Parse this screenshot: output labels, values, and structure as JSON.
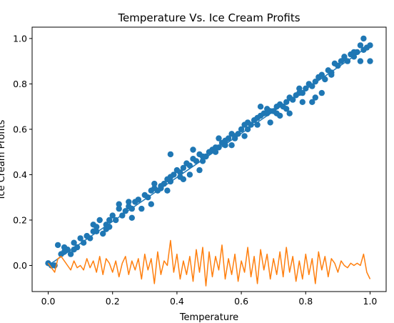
{
  "chart_data": {
    "type": "scatter",
    "title": "Temperature Vs. Ice Cream Profits",
    "xlabel": "Temperature",
    "ylabel": "Ice Cream Profits",
    "xlim": [
      -0.05,
      1.05
    ],
    "ylim": [
      -0.115,
      1.05
    ],
    "xticks": [
      "0.0",
      "0.2",
      "0.4",
      "0.6",
      "0.8",
      "1.0"
    ],
    "yticks": [
      "0.0",
      "0.2",
      "0.4",
      "0.6",
      "0.8",
      "1.0"
    ],
    "grid": false,
    "legend": "none",
    "colors": {
      "scatter": "#1f77b4",
      "fit_line": "#1f77b4",
      "residual_line": "#ff7f0e"
    },
    "scatter_series": {
      "x": [
        0.0,
        0.01,
        0.03,
        0.04,
        0.05,
        0.06,
        0.07,
        0.08,
        0.09,
        0.1,
        0.11,
        0.12,
        0.13,
        0.14,
        0.15,
        0.16,
        0.17,
        0.18,
        0.19,
        0.2,
        0.21,
        0.22,
        0.23,
        0.24,
        0.25,
        0.26,
        0.27,
        0.28,
        0.29,
        0.3,
        0.31,
        0.32,
        0.33,
        0.34,
        0.35,
        0.36,
        0.37,
        0.38,
        0.39,
        0.4,
        0.41,
        0.42,
        0.43,
        0.44,
        0.45,
        0.46,
        0.47,
        0.48,
        0.49,
        0.5,
        0.51,
        0.52,
        0.53,
        0.54,
        0.55,
        0.56,
        0.57,
        0.58,
        0.59,
        0.6,
        0.61,
        0.62,
        0.63,
        0.64,
        0.65,
        0.66,
        0.67,
        0.68,
        0.69,
        0.7,
        0.71,
        0.72,
        0.73,
        0.74,
        0.75,
        0.76,
        0.77,
        0.78,
        0.79,
        0.8,
        0.81,
        0.82,
        0.83,
        0.84,
        0.85,
        0.86,
        0.87,
        0.88,
        0.89,
        0.9,
        0.91,
        0.92,
        0.93,
        0.94,
        0.95,
        0.96,
        0.97,
        0.98,
        0.99,
        1.0,
        0.02,
        0.05,
        0.08,
        0.12,
        0.15,
        0.18,
        0.22,
        0.25,
        0.28,
        0.32,
        0.35,
        0.38,
        0.42,
        0.45,
        0.48,
        0.52,
        0.55,
        0.58,
        0.62,
        0.65,
        0.68,
        0.72,
        0.75,
        0.78,
        0.82,
        0.85,
        0.88,
        0.92,
        0.95,
        0.98,
        0.14,
        0.19,
        0.26,
        0.33,
        0.37,
        0.41,
        0.44,
        0.47,
        0.53,
        0.57,
        0.61,
        0.66,
        0.69,
        0.71,
        0.74,
        0.79,
        0.83,
        0.97,
        1.0,
        0.38
      ],
      "y": [
        0.01,
        0.0,
        0.09,
        0.05,
        0.08,
        0.07,
        0.05,
        0.1,
        0.08,
        0.12,
        0.1,
        0.13,
        0.12,
        0.18,
        0.15,
        0.2,
        0.14,
        0.18,
        0.2,
        0.22,
        0.2,
        0.25,
        0.22,
        0.24,
        0.28,
        0.25,
        0.28,
        0.29,
        0.25,
        0.31,
        0.3,
        0.33,
        0.34,
        0.33,
        0.35,
        0.36,
        0.38,
        0.37,
        0.4,
        0.42,
        0.41,
        0.43,
        0.45,
        0.44,
        0.47,
        0.46,
        0.49,
        0.48,
        0.48,
        0.5,
        0.51,
        0.52,
        0.52,
        0.54,
        0.53,
        0.56,
        0.58,
        0.56,
        0.58,
        0.6,
        0.62,
        0.6,
        0.62,
        0.64,
        0.65,
        0.66,
        0.67,
        0.67,
        0.68,
        0.68,
        0.7,
        0.71,
        0.7,
        0.72,
        0.74,
        0.73,
        0.75,
        0.76,
        0.76,
        0.78,
        0.8,
        0.79,
        0.81,
        0.83,
        0.84,
        0.82,
        0.86,
        0.85,
        0.89,
        0.88,
        0.9,
        0.91,
        0.9,
        0.93,
        0.92,
        0.94,
        0.97,
        0.95,
        0.96,
        0.97,
        0.0,
        0.06,
        0.07,
        0.13,
        0.17,
        0.16,
        0.27,
        0.26,
        0.29,
        0.27,
        0.34,
        0.39,
        0.38,
        0.51,
        0.46,
        0.5,
        0.55,
        0.57,
        0.63,
        0.62,
        0.69,
        0.66,
        0.67,
        0.78,
        0.72,
        0.76,
        0.84,
        0.92,
        0.94,
        1.0,
        0.15,
        0.17,
        0.21,
        0.36,
        0.33,
        0.39,
        0.4,
        0.42,
        0.56,
        0.53,
        0.57,
        0.7,
        0.63,
        0.67,
        0.69,
        0.72,
        0.74,
        0.9,
        0.9,
        0.49
      ]
    },
    "fit_line": {
      "x": [
        0.0,
        1.0
      ],
      "y": [
        0.0,
        0.97
      ]
    },
    "residual_series": {
      "x": [
        0.0,
        0.01,
        0.02,
        0.03,
        0.04,
        0.05,
        0.06,
        0.07,
        0.08,
        0.09,
        0.1,
        0.11,
        0.12,
        0.13,
        0.14,
        0.15,
        0.16,
        0.17,
        0.18,
        0.19,
        0.2,
        0.21,
        0.22,
        0.23,
        0.24,
        0.25,
        0.26,
        0.27,
        0.28,
        0.29,
        0.3,
        0.31,
        0.32,
        0.33,
        0.34,
        0.35,
        0.36,
        0.37,
        0.38,
        0.39,
        0.4,
        0.41,
        0.42,
        0.43,
        0.44,
        0.45,
        0.46,
        0.47,
        0.48,
        0.49,
        0.5,
        0.51,
        0.52,
        0.53,
        0.54,
        0.55,
        0.56,
        0.57,
        0.58,
        0.59,
        0.6,
        0.61,
        0.62,
        0.63,
        0.64,
        0.65,
        0.66,
        0.67,
        0.68,
        0.69,
        0.7,
        0.71,
        0.72,
        0.73,
        0.74,
        0.75,
        0.76,
        0.77,
        0.78,
        0.79,
        0.8,
        0.81,
        0.82,
        0.83,
        0.84,
        0.85,
        0.86,
        0.87,
        0.88,
        0.89,
        0.9,
        0.91,
        0.92,
        0.93,
        0.94,
        0.95,
        0.96,
        0.97,
        0.98,
        0.99,
        1.0
      ],
      "y": [
        0.01,
        -0.01,
        -0.03,
        0.03,
        0.04,
        0.02,
        0.0,
        -0.02,
        0.02,
        -0.01,
        0.0,
        -0.02,
        0.03,
        -0.01,
        0.02,
        -0.03,
        0.04,
        -0.04,
        0.03,
        0.01,
        -0.03,
        0.02,
        -0.05,
        0.01,
        0.04,
        -0.04,
        0.02,
        -0.02,
        0.03,
        -0.06,
        0.05,
        -0.02,
        0.03,
        -0.08,
        0.06,
        -0.04,
        0.02,
        0.0,
        0.11,
        -0.03,
        0.05,
        -0.06,
        0.02,
        -0.04,
        0.04,
        -0.07,
        0.07,
        -0.03,
        0.08,
        -0.09,
        0.06,
        -0.05,
        0.04,
        -0.02,
        0.09,
        -0.06,
        0.03,
        -0.04,
        0.05,
        -0.07,
        0.02,
        -0.03,
        0.08,
        -0.05,
        0.04,
        -0.08,
        0.07,
        -0.02,
        0.05,
        -0.06,
        0.03,
        -0.04,
        0.06,
        -0.05,
        0.08,
        -0.03,
        0.04,
        -0.07,
        0.02,
        -0.06,
        0.05,
        -0.04,
        0.03,
        -0.08,
        0.06,
        -0.02,
        0.04,
        -0.05,
        0.03,
        0.01,
        -0.03,
        0.02,
        0.0,
        -0.01,
        0.01,
        0.0,
        0.01,
        0.0,
        0.05,
        -0.03,
        -0.06
      ]
    }
  }
}
